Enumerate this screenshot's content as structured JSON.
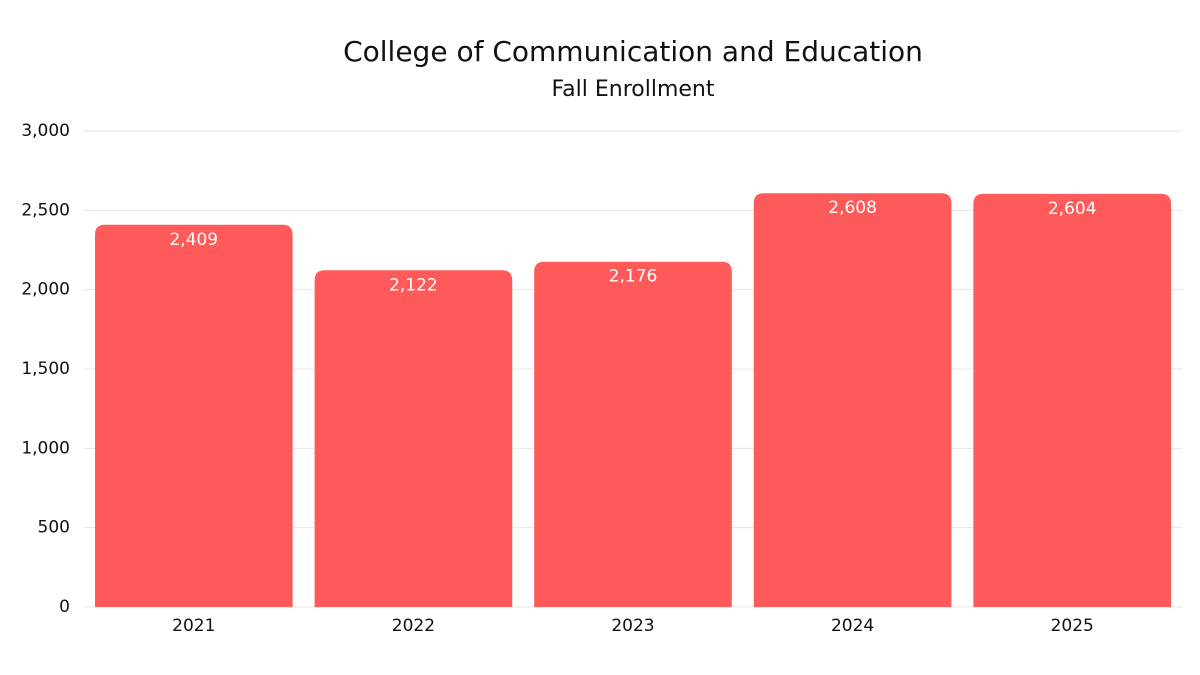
{
  "chart_data": {
    "type": "bar",
    "title": "College of Communication and Education",
    "subtitle": "Fall Enrollment",
    "categories": [
      "2021",
      "2022",
      "2023",
      "2024",
      "2025"
    ],
    "values": [
      2409,
      2122,
      2176,
      2608,
      2604
    ],
    "value_labels": [
      "2,409",
      "2,122",
      "2,176",
      "2,608",
      "2,604"
    ],
    "color": "#ff5a5a",
    "ylim": [
      0,
      3000
    ],
    "yticks": [
      0,
      500,
      {
        "value": 1000,
        "label": "1,000"
      },
      {
        "value": 1500,
        "label": "1,500"
      },
      {
        "value": 2000,
        "label": "2,000"
      },
      {
        "value": 2500,
        "label": "2,500"
      },
      {
        "value": 3000,
        "label": "3,000"
      }
    ],
    "grid": true
  }
}
